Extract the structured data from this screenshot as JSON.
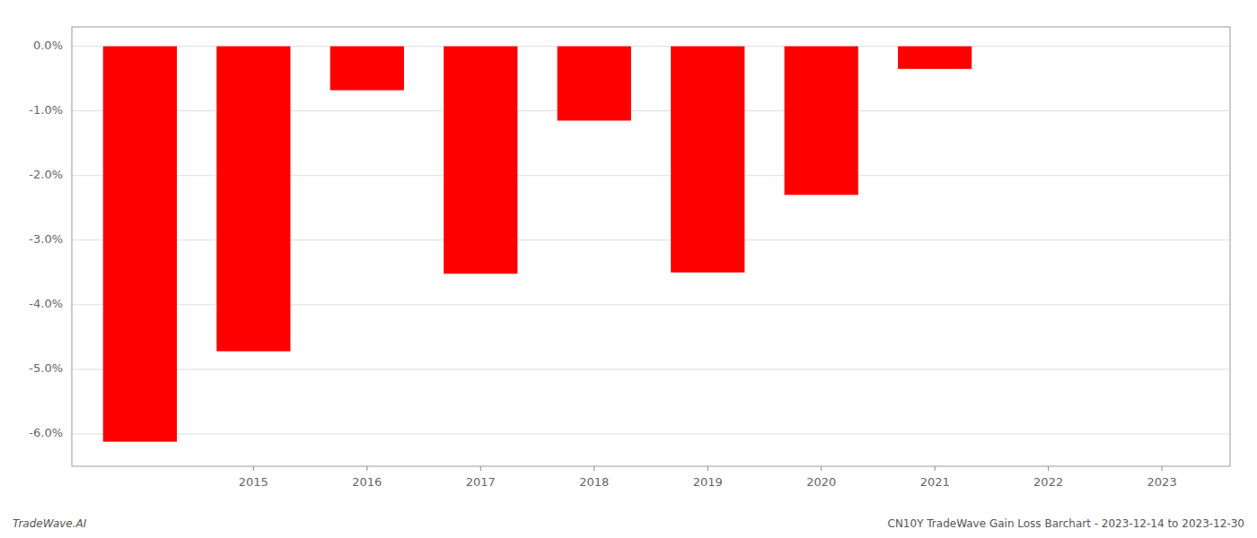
{
  "chart_data": {
    "type": "bar",
    "x": [
      2014,
      2015,
      2016,
      2017,
      2018,
      2019,
      2020,
      2021,
      2022
    ],
    "values": [
      -6.12,
      -4.72,
      -0.68,
      -3.52,
      -1.15,
      -3.5,
      -2.3,
      -0.35,
      -0.0
    ],
    "color": "#ff0000",
    "xlim": [
      2013.4,
      2023.6
    ],
    "xticks": [
      2015,
      2016,
      2017,
      2018,
      2019,
      2020,
      2021,
      2022,
      2023
    ],
    "ylim": [
      -6.5,
      0.3
    ],
    "yticks": [
      {
        "value": 0.0,
        "label": "0.0%"
      },
      {
        "value": -1.0,
        "label": "-1.0%"
      },
      {
        "value": -2.0,
        "label": "-2.0%"
      },
      {
        "value": -3.0,
        "label": "-3.0%"
      },
      {
        "value": -4.0,
        "label": "-4.0%"
      },
      {
        "value": -5.0,
        "label": "-5.0%"
      },
      {
        "value": -6.0,
        "label": "-6.0%"
      }
    ],
    "grid": true,
    "annotations": [
      "TradeWave.AI",
      "CN10Y TradeWave Gain Loss Barchart - 2023-12-14 to 2023-12-30"
    ]
  }
}
